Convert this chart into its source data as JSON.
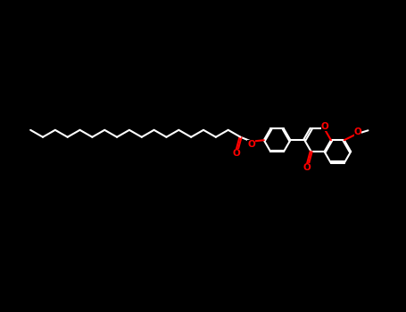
{
  "background_color": "#000000",
  "bond_color": "#ffffff",
  "oxygen_color": "#ff0000",
  "line_width": 1.5,
  "fig_width": 4.55,
  "fig_height": 3.5,
  "dpi": 100,
  "xlim": [
    -4.6,
    4.6
  ],
  "ylim": [
    -2.5,
    2.5
  ]
}
